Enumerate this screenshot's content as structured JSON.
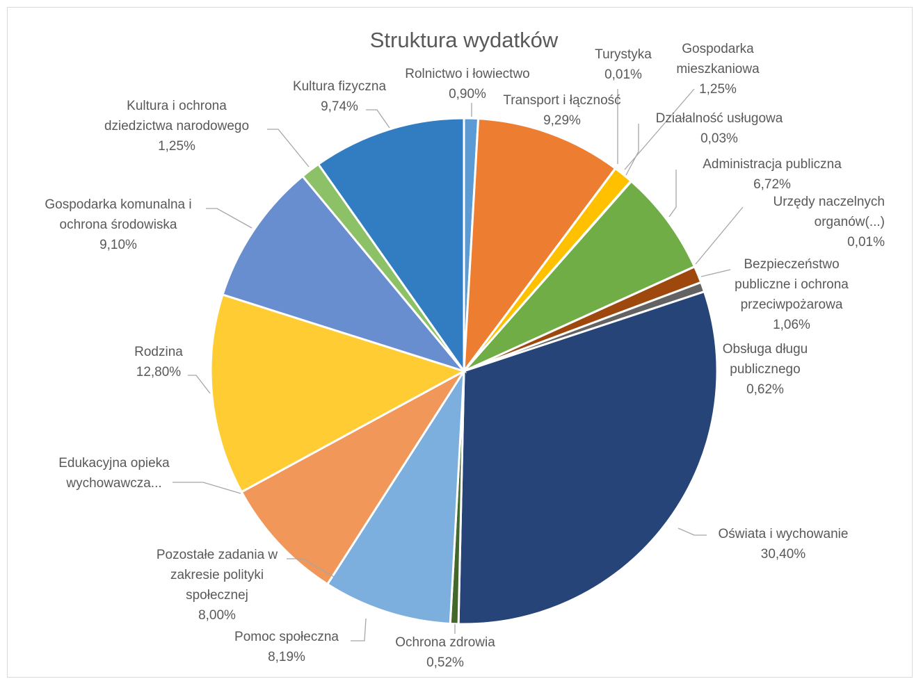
{
  "chart_data": {
    "type": "pie",
    "title": "Struktura wydatków",
    "legend": "none",
    "slices": [
      {
        "label_lines": [
          "Rolnictwo i łowiectwo"
        ],
        "value_label": "0,90%",
        "value": 0.9,
        "color": "#5b9bd5"
      },
      {
        "label_lines": [
          "Transport i łączność"
        ],
        "value_label": "9,29%",
        "value": 9.29,
        "color": "#ed7d31"
      },
      {
        "label_lines": [
          "Turystyka"
        ],
        "value_label": "0,01%",
        "value": 0.01,
        "color": "#a5a5a5"
      },
      {
        "label_lines": [
          "Gospodarka",
          "mieszkaniowa"
        ],
        "value_label": "1,25%",
        "value": 1.25,
        "color": "#ffc000"
      },
      {
        "label_lines": [
          "Działalność usługowa"
        ],
        "value_label": "0,03%",
        "value": 0.03,
        "color": "#4472c4"
      },
      {
        "label_lines": [
          "Administracja publiczna"
        ],
        "value_label": "6,72%",
        "value": 6.72,
        "color": "#70ad47"
      },
      {
        "label_lines": [
          "Urzędy naczelnych",
          "organów(...)"
        ],
        "value_label": "0,01%",
        "value": 0.01,
        "color": "#255e91"
      },
      {
        "label_lines": [
          "Bezpieczeństwo",
          "publiczne i ochrona",
          "przeciwpożarowa"
        ],
        "value_label": "1,06%",
        "value": 1.06,
        "color": "#9e480e"
      },
      {
        "label_lines": [
          "Obsługa długu",
          "publicznego"
        ],
        "value_label": "0,62%",
        "value": 0.62,
        "color": "#636363"
      },
      {
        "label_lines": [
          "Oświata i wychowanie"
        ],
        "value_label": "30,40%",
        "value": 30.4,
        "color": "#264478"
      },
      {
        "label_lines": [
          "Ochrona zdrowia"
        ],
        "value_label": "0,52%",
        "value": 0.52,
        "color": "#43682b"
      },
      {
        "label_lines": [
          "Pomoc społeczna"
        ],
        "value_label": "8,19%",
        "value": 8.19,
        "color": "#7cafdd"
      },
      {
        "label_lines": [
          "Pozostałe zadania w",
          "zakresie polityki",
          "społecznej"
        ],
        "value_label": "8,00%",
        "value": 8.0,
        "color": "#f1975a"
      },
      {
        "label_lines": [
          "Edukacyjna opieka",
          "wychowawcza..."
        ],
        "value_label": "",
        "value": 0.0,
        "color": "#b7b7b7"
      },
      {
        "label_lines": [
          "Rodzina"
        ],
        "value_label": "12,80%",
        "value": 12.8,
        "color": "#ffcd33"
      },
      {
        "label_lines": [
          "Gospodarka komunalna i",
          "ochrona środowiska"
        ],
        "value_label": "9,10%",
        "value": 9.1,
        "color": "#698ed0"
      },
      {
        "label_lines": [
          "Kultura i ochrona",
          "dziedzictwa narodowego"
        ],
        "value_label": "1,25%",
        "value": 1.25,
        "color": "#8cc168"
      },
      {
        "label_lines": [
          "Kultura fizyczna"
        ],
        "value_label": "9,74%",
        "value": 9.74,
        "color": "#327dc2"
      }
    ]
  }
}
